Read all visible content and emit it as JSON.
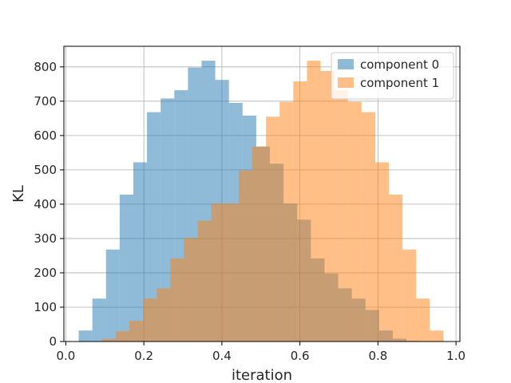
{
  "chart_data": {
    "type": "bar",
    "xlabel": "iteration",
    "ylabel": "KL",
    "xlim": [
      -0.005,
      1.01
    ],
    "ylim": [
      0,
      860
    ],
    "xticks": [
      0.0,
      0.2,
      0.4,
      0.6,
      0.8,
      1.0
    ],
    "xtick_labels": [
      "0.0",
      "0.2",
      "0.4",
      "0.6",
      "0.8",
      "1.0"
    ],
    "yticks": [
      0,
      100,
      200,
      300,
      400,
      500,
      600,
      700,
      800
    ],
    "ytick_labels": [
      "0",
      "100",
      "200",
      "300",
      "400",
      "500",
      "600",
      "700",
      "800"
    ],
    "grid": true,
    "legend": "top-right",
    "series": [
      {
        "name": "component 0",
        "color": "#1f77b4",
        "alpha": 0.5,
        "bin_edges": [
          0.033,
          0.068,
          0.103,
          0.138,
          0.173,
          0.208,
          0.243,
          0.278,
          0.313,
          0.348,
          0.383,
          0.418,
          0.453,
          0.488,
          0.523,
          0.558,
          0.593,
          0.628,
          0.663,
          0.698,
          0.733,
          0.768,
          0.803,
          0.838,
          0.873,
          0.908,
          0.943
        ],
        "values": [
          32,
          125,
          268,
          428,
          522,
          668,
          708,
          732,
          798,
          818,
          762,
          695,
          658,
          568,
          518,
          402,
          355,
          242,
          198,
          155,
          125,
          92,
          32,
          8,
          2,
          1
        ]
      },
      {
        "name": "component 1",
        "color": "#ff7f0e",
        "alpha": 0.5,
        "bin_edges": [
          0.058,
          0.093,
          0.128,
          0.163,
          0.198,
          0.233,
          0.268,
          0.303,
          0.338,
          0.373,
          0.408,
          0.443,
          0.478,
          0.513,
          0.548,
          0.583,
          0.618,
          0.653,
          0.688,
          0.723,
          0.758,
          0.793,
          0.828,
          0.863,
          0.898,
          0.933,
          0.968
        ],
        "values": [
          1,
          8,
          30,
          60,
          125,
          155,
          242,
          302,
          352,
          402,
          402,
          498,
          568,
          655,
          698,
          758,
          818,
          788,
          732,
          698,
          668,
          522,
          428,
          268,
          125,
          32
        ]
      }
    ]
  }
}
